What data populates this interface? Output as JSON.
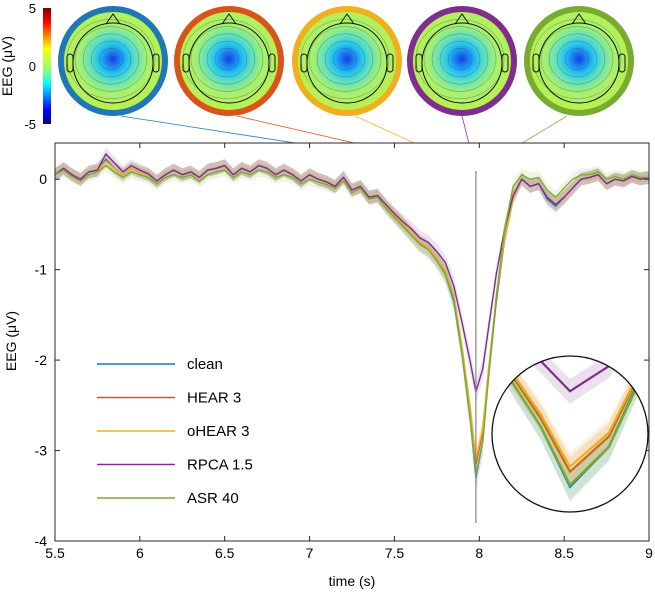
{
  "colorbar": {
    "label": "EEG (μV)",
    "ticks": [
      "5",
      "0",
      "-5"
    ],
    "range": [
      -5,
      5
    ]
  },
  "topomaps": [
    {
      "series": "clean",
      "ring_color": "#1f77b4"
    },
    {
      "series": "HEAR 3",
      "ring_color": "#d9541a"
    },
    {
      "series": "oHEAR 3",
      "ring_color": "#edb120"
    },
    {
      "series": "RPCA 1.5",
      "ring_color": "#7e2f8e"
    },
    {
      "series": "ASR 40",
      "ring_color": "#77ac30"
    }
  ],
  "chart_data": {
    "type": "line",
    "xlabel": "time (s)",
    "ylabel": "EEG (μV)",
    "xlim": [
      5.5,
      9
    ],
    "ylim": [
      -4,
      0.4
    ],
    "xticks": [
      "5.5",
      "6",
      "6.5",
      "7",
      "7.5",
      "8",
      "8.5",
      "9"
    ],
    "yticks": [
      "0",
      "-1",
      "-2",
      "-3",
      "-4"
    ],
    "marker_time": 7.98,
    "legend_position": "lower-left",
    "grid": false,
    "x": [
      5.5,
      5.55,
      5.6,
      5.65,
      5.7,
      5.75,
      5.8,
      5.85,
      5.9,
      5.95,
      6,
      6.05,
      6.1,
      6.15,
      6.2,
      6.25,
      6.3,
      6.35,
      6.4,
      6.45,
      6.5,
      6.55,
      6.6,
      6.65,
      6.7,
      6.75,
      6.8,
      6.85,
      6.9,
      6.95,
      7,
      7.05,
      7.1,
      7.15,
      7.2,
      7.25,
      7.3,
      7.35,
      7.4,
      7.45,
      7.5,
      7.55,
      7.6,
      7.65,
      7.7,
      7.75,
      7.8,
      7.85,
      7.9,
      7.95,
      7.98,
      8.02,
      8.05,
      8.1,
      8.15,
      8.2,
      8.25,
      8.3,
      8.35,
      8.4,
      8.45,
      8.5,
      8.55,
      8.6,
      8.65,
      8.7,
      8.75,
      8.8,
      8.85,
      8.9,
      8.95,
      9
    ],
    "series": [
      {
        "name": "clean",
        "color": "#1f77b4",
        "values": [
          0.05,
          0.12,
          0.05,
          0.0,
          0.08,
          0.1,
          0.22,
          0.12,
          0.05,
          0.12,
          0.08,
          0.05,
          -0.02,
          0.05,
          0.1,
          0.05,
          0.08,
          0.02,
          0.1,
          0.12,
          0.15,
          0.05,
          0.12,
          0.08,
          0.15,
          0.12,
          0.05,
          0.1,
          0.05,
          -0.02,
          0.05,
          0.0,
          -0.03,
          -0.08,
          0.02,
          -0.12,
          -0.08,
          -0.2,
          -0.18,
          -0.3,
          -0.4,
          -0.5,
          -0.62,
          -0.72,
          -0.78,
          -0.9,
          -1.05,
          -1.35,
          -1.95,
          -2.7,
          -3.3,
          -2.9,
          -2.25,
          -1.35,
          -0.65,
          -0.2,
          0.0,
          -0.08,
          -0.05,
          -0.22,
          -0.3,
          -0.2,
          -0.1,
          0.0,
          0.02,
          0.05,
          -0.05,
          0.0,
          -0.02,
          0.03,
          0.0,
          0.02
        ]
      },
      {
        "name": "HEAR 3",
        "color": "#d9541a",
        "values": [
          0.05,
          0.12,
          0.05,
          0.0,
          0.08,
          0.1,
          0.2,
          0.12,
          0.05,
          0.12,
          0.08,
          0.05,
          -0.02,
          0.05,
          0.1,
          0.05,
          0.08,
          0.02,
          0.1,
          0.12,
          0.15,
          0.05,
          0.12,
          0.08,
          0.15,
          0.12,
          0.05,
          0.1,
          0.05,
          -0.02,
          0.05,
          0.0,
          -0.03,
          -0.08,
          0.02,
          -0.12,
          -0.08,
          -0.2,
          -0.18,
          -0.3,
          -0.4,
          -0.5,
          -0.6,
          -0.7,
          -0.76,
          -0.88,
          -1.02,
          -1.3,
          -1.9,
          -2.62,
          -3.15,
          -2.8,
          -2.2,
          -1.32,
          -0.65,
          -0.2,
          0.0,
          -0.08,
          -0.05,
          -0.2,
          -0.28,
          -0.2,
          -0.1,
          0.0,
          0.02,
          0.05,
          -0.05,
          0.0,
          -0.02,
          0.03,
          0.0,
          0.02
        ]
      },
      {
        "name": "oHEAR 3",
        "color": "#edb120",
        "values": [
          0.05,
          0.12,
          0.05,
          0.0,
          0.08,
          0.1,
          0.2,
          0.12,
          0.05,
          0.12,
          0.08,
          0.05,
          -0.02,
          0.05,
          0.1,
          0.05,
          0.08,
          0.02,
          0.1,
          0.12,
          0.15,
          0.05,
          0.12,
          0.08,
          0.15,
          0.12,
          0.05,
          0.1,
          0.05,
          -0.02,
          0.05,
          0.0,
          -0.03,
          -0.08,
          0.02,
          -0.12,
          -0.08,
          -0.2,
          -0.18,
          -0.3,
          -0.4,
          -0.5,
          -0.6,
          -0.7,
          -0.76,
          -0.88,
          -1.02,
          -1.3,
          -1.88,
          -2.58,
          -3.1,
          -2.76,
          -2.18,
          -1.3,
          -0.65,
          -0.2,
          0.0,
          -0.08,
          -0.05,
          -0.2,
          -0.28,
          -0.2,
          -0.1,
          0.0,
          0.02,
          0.05,
          -0.05,
          0.0,
          -0.02,
          0.03,
          0.0,
          0.02
        ]
      },
      {
        "name": "RPCA 1.5",
        "color": "#7e2f8e",
        "values": [
          0.05,
          0.12,
          0.05,
          0.0,
          0.08,
          0.1,
          0.28,
          0.18,
          0.08,
          0.15,
          0.1,
          0.06,
          -0.02,
          0.05,
          0.1,
          0.05,
          0.08,
          0.02,
          0.1,
          0.12,
          0.15,
          0.05,
          0.12,
          0.08,
          0.15,
          0.12,
          0.05,
          0.1,
          0.05,
          -0.02,
          0.05,
          0.0,
          -0.03,
          -0.08,
          0.02,
          -0.12,
          -0.08,
          -0.2,
          -0.18,
          -0.28,
          -0.38,
          -0.47,
          -0.55,
          -0.65,
          -0.7,
          -0.8,
          -0.92,
          -1.18,
          -1.6,
          -2.05,
          -2.35,
          -2.1,
          -1.7,
          -1.05,
          -0.55,
          -0.18,
          0.0,
          -0.08,
          -0.05,
          -0.2,
          -0.28,
          -0.2,
          -0.1,
          0.0,
          0.02,
          0.05,
          -0.05,
          0.0,
          -0.02,
          0.03,
          0.0,
          0.02
        ]
      },
      {
        "name": "ASR 40",
        "color": "#77ac30",
        "values": [
          0.05,
          0.1,
          0.03,
          -0.02,
          0.05,
          0.08,
          0.15,
          0.08,
          0.02,
          0.08,
          0.05,
          0.02,
          -0.05,
          0.02,
          0.05,
          0.02,
          0.05,
          -0.02,
          0.05,
          0.08,
          0.1,
          0.02,
          0.08,
          0.05,
          0.1,
          0.08,
          0.02,
          0.05,
          0.02,
          -0.05,
          0.0,
          -0.03,
          -0.06,
          -0.1,
          -0.02,
          -0.15,
          -0.1,
          -0.22,
          -0.2,
          -0.32,
          -0.42,
          -0.52,
          -0.62,
          -0.72,
          -0.78,
          -0.9,
          -1.05,
          -1.33,
          -1.95,
          -2.7,
          -3.28,
          -2.9,
          -2.28,
          -1.3,
          -0.55,
          -0.08,
          0.05,
          0.0,
          0.02,
          -0.12,
          -0.2,
          -0.1,
          0.0,
          0.05,
          0.05,
          0.08,
          0.0,
          0.03,
          0.0,
          0.05,
          0.02,
          0.02
        ]
      }
    ]
  }
}
